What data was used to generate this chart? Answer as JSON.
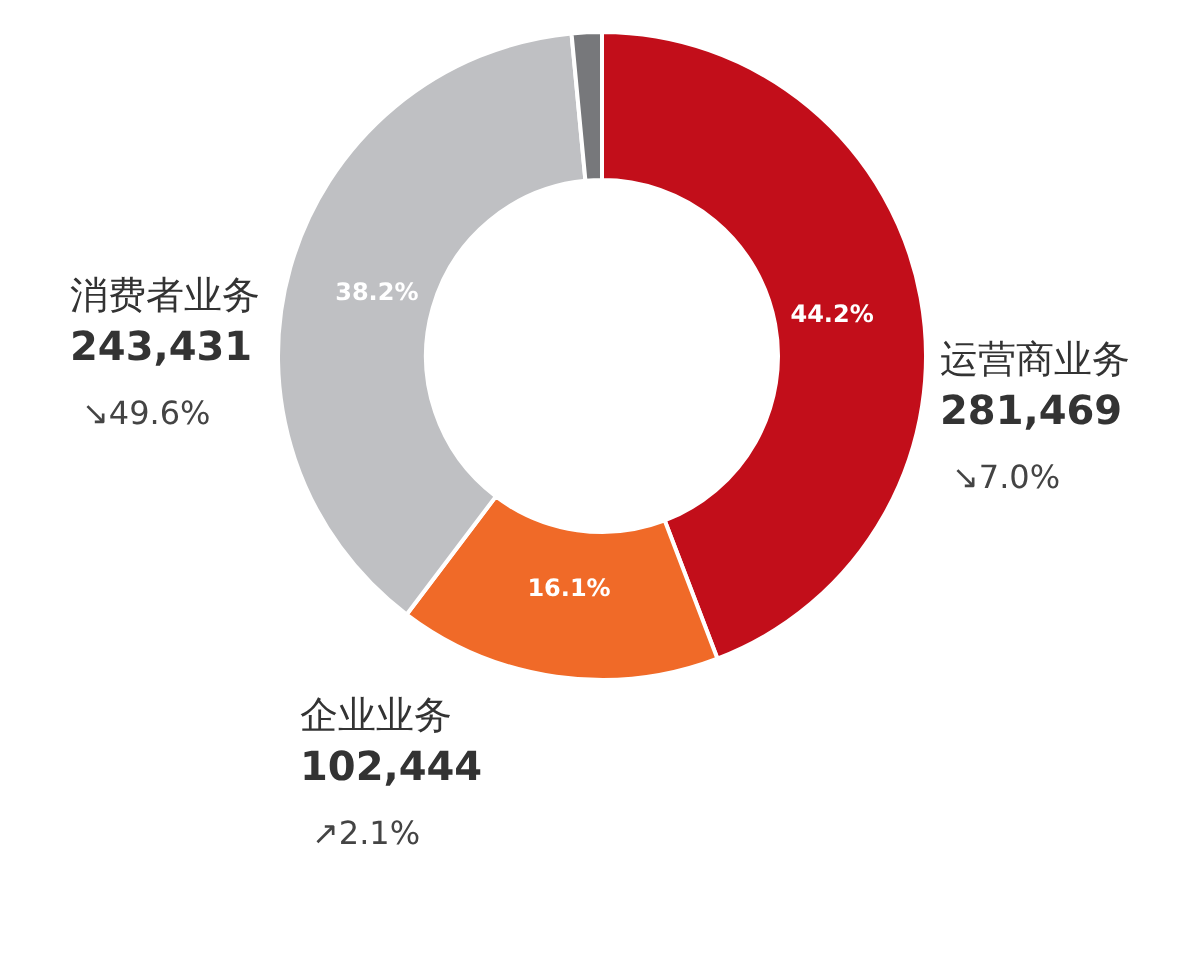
{
  "chart_data": {
    "type": "donut",
    "categories": [
      "运营商业务",
      "企业业务",
      "消费者业务",
      null
    ],
    "values": [
      44.2,
      16.1,
      38.2,
      1.5
    ],
    "colors": [
      "#c20e1a",
      "#f06a28",
      "#bfc0c3",
      "#77787b"
    ],
    "value_labels": [
      "44.2%",
      "16.1%",
      "38.2%",
      null
    ],
    "annotations": [
      "281,469",
      "↘7.0%",
      "102,444",
      "↗2.1%",
      "243,431",
      "↘49.6%"
    ]
  }
}
